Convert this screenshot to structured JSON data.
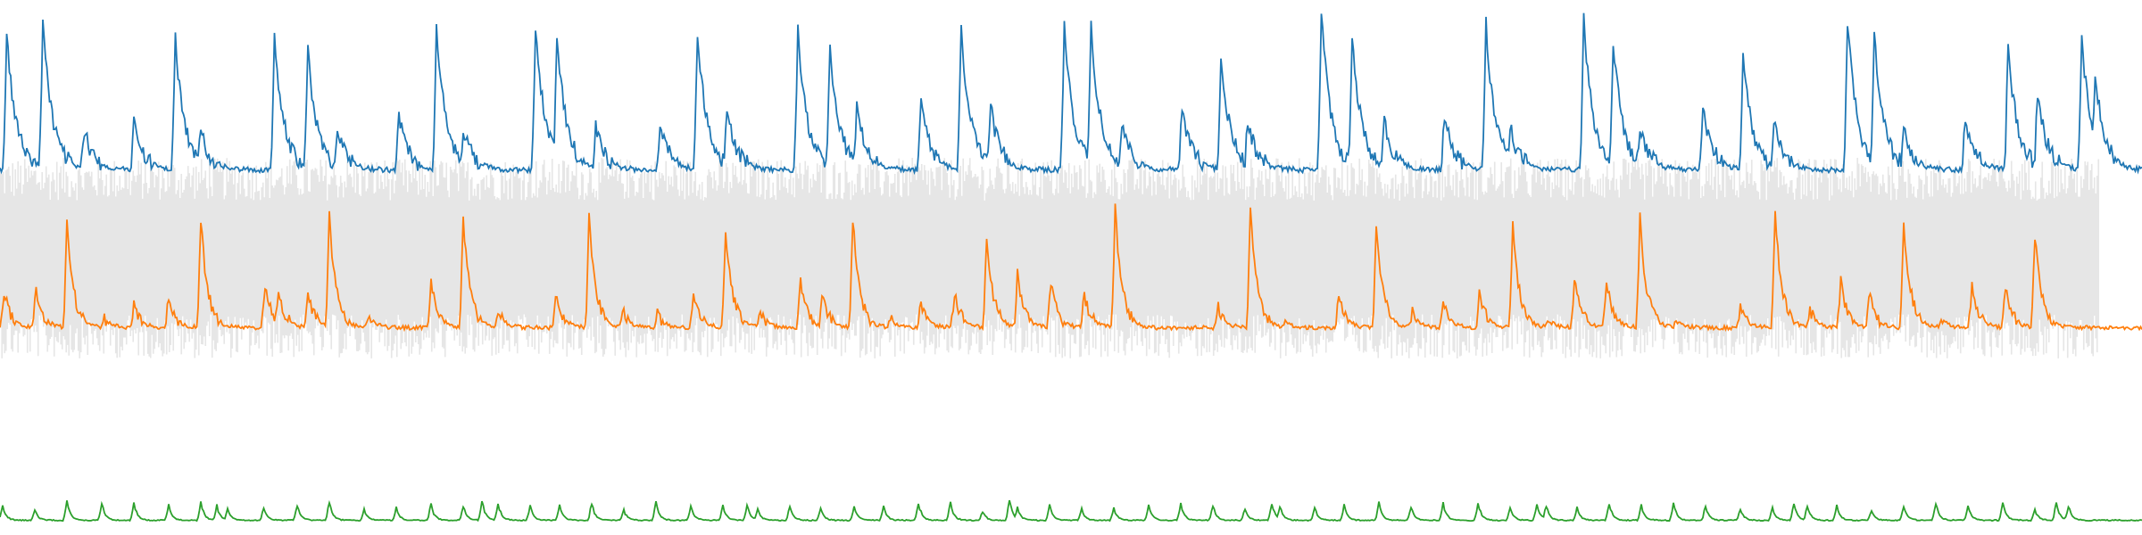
{
  "chart_data": {
    "type": "line",
    "title": "",
    "xlabel": "",
    "ylabel": "",
    "grid": false,
    "legend": "none",
    "x_range": [
      0,
      1600
    ],
    "cycle_period": 75,
    "cycle_starts": [
      0,
      75,
      150,
      225,
      300,
      375,
      450,
      525,
      600,
      675,
      750,
      825,
      900,
      975,
      1050,
      1125,
      1200,
      1275,
      1350,
      1425,
      1500,
      1575
    ],
    "series": [
      {
        "color": "#1f77b4",
        "baseline": 127,
        "peaks": [
          {
            "x": 5,
            "y": 25
          },
          {
            "x": 32,
            "y": 15
          },
          {
            "x": 63,
            "y": 98
          },
          {
            "x": 100,
            "y": 92
          },
          {
            "x": 131,
            "y": 30
          },
          {
            "x": 150,
            "y": 98
          },
          {
            "x": 205,
            "y": 30
          },
          {
            "x": 230,
            "y": 38
          },
          {
            "x": 252,
            "y": 95
          },
          {
            "x": 298,
            "y": 88
          },
          {
            "x": 326,
            "y": 22
          },
          {
            "x": 346,
            "y": 95
          },
          {
            "x": 400,
            "y": 18
          },
          {
            "x": 416,
            "y": 25
          },
          {
            "x": 445,
            "y": 95
          },
          {
            "x": 493,
            "y": 93
          },
          {
            "x": 521,
            "y": 22
          },
          {
            "x": 543,
            "y": 82
          },
          {
            "x": 596,
            "y": 22
          },
          {
            "x": 620,
            "y": 35
          },
          {
            "x": 640,
            "y": 80
          },
          {
            "x": 688,
            "y": 78
          },
          {
            "x": 718,
            "y": 22
          },
          {
            "x": 740,
            "y": 80
          },
          {
            "x": 795,
            "y": 18
          },
          {
            "x": 815,
            "y": 20
          },
          {
            "x": 838,
            "y": 92
          },
          {
            "x": 883,
            "y": 80
          },
          {
            "x": 912,
            "y": 42
          },
          {
            "x": 932,
            "y": 90
          },
          {
            "x": 987,
            "y": 8
          },
          {
            "x": 1010,
            "y": 28
          },
          {
            "x": 1034,
            "y": 90
          },
          {
            "x": 1079,
            "y": 88
          },
          {
            "x": 1110,
            "y": 18
          },
          {
            "x": 1128,
            "y": 95
          },
          {
            "x": 1183,
            "y": 15
          },
          {
            "x": 1205,
            "y": 30
          },
          {
            "x": 1225,
            "y": 95
          },
          {
            "x": 1272,
            "y": 80
          },
          {
            "x": 1302,
            "y": 42
          },
          {
            "x": 1325,
            "y": 92
          },
          {
            "x": 1380,
            "y": 15
          },
          {
            "x": 1400,
            "y": 25
          },
          {
            "x": 1422,
            "y": 95
          },
          {
            "x": 1468,
            "y": 88
          },
          {
            "x": 1500,
            "y": 35
          },
          {
            "x": 1522,
            "y": 70
          },
          {
            "x": 1555,
            "y": 28
          },
          {
            "x": 1565,
            "y": 55
          }
        ]
      },
      {
        "color": "#e6e6e6",
        "band_top": 118,
        "band_bottom": 268,
        "core_top": 150,
        "core_bottom": 235
      },
      {
        "color": "#ff7f0e",
        "baseline": 245,
        "peaks": [
          {
            "x": 3,
            "y": 218
          },
          {
            "x": 27,
            "y": 215
          },
          {
            "x": 50,
            "y": 168
          },
          {
            "x": 78,
            "y": 238
          },
          {
            "x": 100,
            "y": 228
          },
          {
            "x": 126,
            "y": 222
          },
          {
            "x": 150,
            "y": 163
          },
          {
            "x": 198,
            "y": 212
          },
          {
            "x": 208,
            "y": 220
          },
          {
            "x": 230,
            "y": 218
          },
          {
            "x": 246,
            "y": 160
          },
          {
            "x": 275,
            "y": 235
          },
          {
            "x": 322,
            "y": 210
          },
          {
            "x": 346,
            "y": 163
          },
          {
            "x": 372,
            "y": 232
          },
          {
            "x": 415,
            "y": 218
          },
          {
            "x": 440,
            "y": 163
          },
          {
            "x": 465,
            "y": 232
          },
          {
            "x": 491,
            "y": 235
          },
          {
            "x": 518,
            "y": 218
          },
          {
            "x": 542,
            "y": 170
          },
          {
            "x": 568,
            "y": 232
          },
          {
            "x": 598,
            "y": 212
          },
          {
            "x": 614,
            "y": 218
          },
          {
            "x": 637,
            "y": 162
          },
          {
            "x": 665,
            "y": 238
          },
          {
            "x": 688,
            "y": 226
          },
          {
            "x": 713,
            "y": 218
          },
          {
            "x": 737,
            "y": 180
          },
          {
            "x": 760,
            "y": 205
          },
          {
            "x": 785,
            "y": 212
          },
          {
            "x": 810,
            "y": 220
          },
          {
            "x": 833,
            "y": 155
          },
          {
            "x": 860,
            "y": 245
          },
          {
            "x": 910,
            "y": 230
          },
          {
            "x": 934,
            "y": 158
          },
          {
            "x": 960,
            "y": 240
          },
          {
            "x": 1000,
            "y": 218
          },
          {
            "x": 1028,
            "y": 165
          },
          {
            "x": 1055,
            "y": 232
          },
          {
            "x": 1078,
            "y": 225
          },
          {
            "x": 1105,
            "y": 218
          },
          {
            "x": 1130,
            "y": 168
          },
          {
            "x": 1156,
            "y": 238
          },
          {
            "x": 1176,
            "y": 210
          },
          {
            "x": 1200,
            "y": 210
          },
          {
            "x": 1225,
            "y": 163
          },
          {
            "x": 1252,
            "y": 240
          },
          {
            "x": 1300,
            "y": 230
          },
          {
            "x": 1326,
            "y": 160
          },
          {
            "x": 1352,
            "y": 232
          },
          {
            "x": 1375,
            "y": 210
          },
          {
            "x": 1396,
            "y": 218
          },
          {
            "x": 1422,
            "y": 165
          },
          {
            "x": 1450,
            "y": 238
          },
          {
            "x": 1473,
            "y": 212
          },
          {
            "x": 1498,
            "y": 215
          },
          {
            "x": 1520,
            "y": 175
          },
          {
            "x": 1548,
            "y": 245
          }
        ]
      },
      {
        "color": "#2ca02c",
        "baseline": 389,
        "peaks": [
          {
            "x": 2,
            "y": 378
          },
          {
            "x": 26,
            "y": 381
          },
          {
            "x": 50,
            "y": 374
          },
          {
            "x": 76,
            "y": 376
          },
          {
            "x": 100,
            "y": 376
          },
          {
            "x": 126,
            "y": 378
          },
          {
            "x": 150,
            "y": 376
          },
          {
            "x": 162,
            "y": 378
          },
          {
            "x": 170,
            "y": 381
          },
          {
            "x": 197,
            "y": 380
          },
          {
            "x": 222,
            "y": 378
          },
          {
            "x": 246,
            "y": 375
          },
          {
            "x": 272,
            "y": 381
          },
          {
            "x": 296,
            "y": 380
          },
          {
            "x": 322,
            "y": 377
          },
          {
            "x": 346,
            "y": 378
          },
          {
            "x": 360,
            "y": 374
          },
          {
            "x": 372,
            "y": 376
          },
          {
            "x": 396,
            "y": 378
          },
          {
            "x": 418,
            "y": 378
          },
          {
            "x": 442,
            "y": 376
          },
          {
            "x": 466,
            "y": 381
          },
          {
            "x": 490,
            "y": 376
          },
          {
            "x": 516,
            "y": 378
          },
          {
            "x": 540,
            "y": 378
          },
          {
            "x": 558,
            "y": 378
          },
          {
            "x": 566,
            "y": 381
          },
          {
            "x": 590,
            "y": 378
          },
          {
            "x": 613,
            "y": 380
          },
          {
            "x": 638,
            "y": 378
          },
          {
            "x": 660,
            "y": 379
          },
          {
            "x": 686,
            "y": 376
          },
          {
            "x": 710,
            "y": 376
          },
          {
            "x": 734,
            "y": 382
          },
          {
            "x": 754,
            "y": 374
          },
          {
            "x": 760,
            "y": 379
          },
          {
            "x": 784,
            "y": 378
          },
          {
            "x": 808,
            "y": 381
          },
          {
            "x": 832,
            "y": 380
          },
          {
            "x": 858,
            "y": 378
          },
          {
            "x": 882,
            "y": 376
          },
          {
            "x": 906,
            "y": 378
          },
          {
            "x": 930,
            "y": 380
          },
          {
            "x": 950,
            "y": 376
          },
          {
            "x": 956,
            "y": 378
          },
          {
            "x": 982,
            "y": 380
          },
          {
            "x": 1004,
            "y": 378
          },
          {
            "x": 1030,
            "y": 376
          },
          {
            "x": 1054,
            "y": 379
          },
          {
            "x": 1078,
            "y": 376
          },
          {
            "x": 1104,
            "y": 376
          },
          {
            "x": 1128,
            "y": 379
          },
          {
            "x": 1148,
            "y": 376
          },
          {
            "x": 1155,
            "y": 378
          },
          {
            "x": 1178,
            "y": 380
          },
          {
            "x": 1202,
            "y": 376
          },
          {
            "x": 1226,
            "y": 378
          },
          {
            "x": 1250,
            "y": 376
          },
          {
            "x": 1274,
            "y": 378
          },
          {
            "x": 1300,
            "y": 380
          },
          {
            "x": 1324,
            "y": 380
          },
          {
            "x": 1340,
            "y": 377
          },
          {
            "x": 1350,
            "y": 378
          },
          {
            "x": 1372,
            "y": 378
          },
          {
            "x": 1398,
            "y": 381
          },
          {
            "x": 1422,
            "y": 378
          },
          {
            "x": 1446,
            "y": 376
          },
          {
            "x": 1470,
            "y": 378
          },
          {
            "x": 1496,
            "y": 376
          },
          {
            "x": 1520,
            "y": 381
          },
          {
            "x": 1536,
            "y": 376
          },
          {
            "x": 1545,
            "y": 378
          }
        ]
      }
    ]
  }
}
